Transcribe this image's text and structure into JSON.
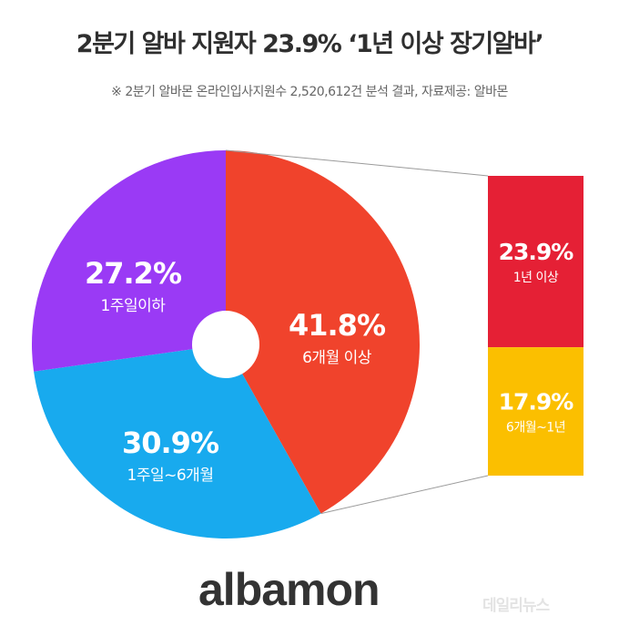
{
  "title": "2분기 알바 지원자 23.9% ‘1년 이상 장기알바’",
  "subtitle": "※ 2분기 알바몬 온라인입사지원수 2,520,612건 분석 결과, 자료제공: 알바몬",
  "chart_data": {
    "type": "pie",
    "title": "2분기 알바 지원자 23.9% ‘1년 이상 장기알바’",
    "slices": [
      {
        "label": "6개월 이상",
        "value": 41.8,
        "value_label": "41.8%",
        "color": "#f0432c"
      },
      {
        "label": "1주일~6개월",
        "value": 30.9,
        "value_label": "30.9%",
        "color": "#18aaee"
      },
      {
        "label": "1주일이하",
        "value": 27.2,
        "value_label": "27.2%",
        "color": "#9a3af5"
      }
    ],
    "breakdown": {
      "of": "6개월 이상",
      "items": [
        {
          "label": "1년 이상",
          "value": 23.9,
          "value_label": "23.9%",
          "color": "#e52035"
        },
        {
          "label": "6개월~1년",
          "value": 17.9,
          "value_label": "17.9%",
          "color": "#fbbf00"
        }
      ]
    }
  },
  "logo_text": "albamon",
  "watermark_text": "데일리뉴스"
}
